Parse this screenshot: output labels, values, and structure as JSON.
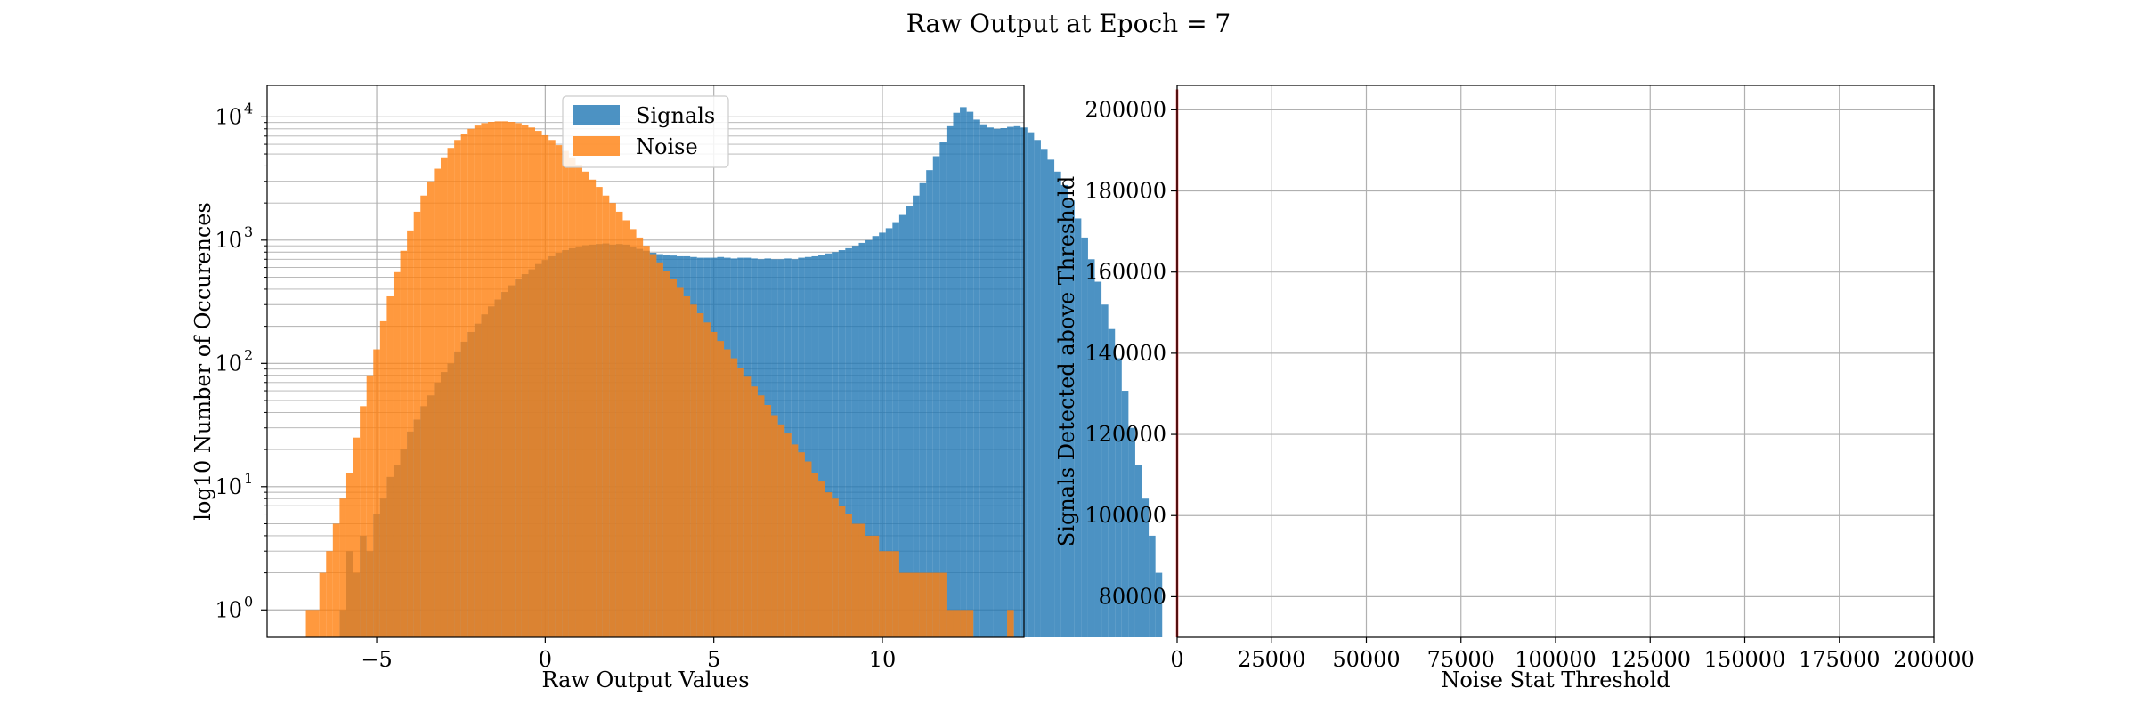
{
  "figure": {
    "suptitle": "Raw Output at Epoch = 7"
  },
  "chart_data": [
    {
      "type": "histogram",
      "title": "",
      "xlabel": "Raw Output Values",
      "ylabel": "log10 Number of Occurences",
      "yscale": "log",
      "xlim": [
        -8.25,
        14.2
      ],
      "ylim": [
        0.6,
        18000
      ],
      "xticks": [
        -5,
        0,
        5,
        10
      ],
      "xtick_labels": [
        "−5",
        "0",
        "5",
        "10"
      ],
      "yticks": [
        1,
        10,
        100,
        1000,
        10000
      ],
      "ytick_labels": [
        "10",
        "10",
        "10",
        "10",
        "10"
      ],
      "ytick_exponents": [
        "0",
        "1",
        "2",
        "3",
        "4"
      ],
      "grid": true,
      "legend_position": "upper center",
      "colors": {
        "signals": "#1f77b4",
        "noise": "#ff7f0e"
      },
      "bin_width": 0.2,
      "series": [
        {
          "name": "Signals",
          "color": "#1f77b4",
          "x_start": -6.1,
          "counts": [
            1,
            3,
            2,
            4,
            3,
            6,
            8,
            12,
            15,
            20,
            28,
            35,
            45,
            55,
            70,
            85,
            100,
            125,
            150,
            180,
            210,
            250,
            290,
            330,
            380,
            430,
            480,
            530,
            580,
            640,
            690,
            740,
            790,
            830,
            860,
            890,
            910,
            920,
            930,
            940,
            920,
            930,
            920,
            880,
            850,
            820,
            790,
            770,
            760,
            750,
            740,
            740,
            730,
            720,
            720,
            720,
            730,
            720,
            710,
            720,
            720,
            710,
            700,
            710,
            700,
            700,
            710,
            700,
            720,
            730,
            740,
            760,
            780,
            800,
            830,
            860,
            900,
            950,
            1000,
            1080,
            1150,
            1250,
            1400,
            1600,
            1900,
            2300,
            2900,
            3700,
            4800,
            6300,
            8400,
            10800,
            12000,
            11000,
            9500,
            8700,
            8200,
            8000,
            8100,
            8300,
            8400,
            8200,
            7500,
            6500,
            5500,
            4500,
            3600,
            2800,
            2100,
            1500,
            1050,
            700,
            460,
            300,
            190,
            110,
            60,
            30,
            15,
            8,
            4,
            2
          ]
        },
        {
          "name": "Noise",
          "color": "#ff7f0e",
          "x_start": -7.1,
          "counts": [
            1,
            1,
            2,
            3,
            5,
            8,
            13,
            25,
            45,
            80,
            130,
            220,
            350,
            550,
            820,
            1200,
            1700,
            2300,
            3000,
            3800,
            4700,
            5600,
            6500,
            7300,
            8000,
            8500,
            8900,
            9100,
            9200,
            9200,
            9100,
            8900,
            8600,
            8200,
            7700,
            7100,
            6500,
            5900,
            5300,
            4700,
            4100,
            3600,
            3100,
            2700,
            2300,
            2000,
            1700,
            1450,
            1230,
            1050,
            900,
            770,
            660,
            560,
            480,
            410,
            350,
            300,
            255,
            215,
            180,
            152,
            130,
            110,
            92,
            78,
            65,
            55,
            46,
            38,
            32,
            27,
            22,
            19,
            16,
            13,
            11,
            9,
            8,
            7,
            6,
            5,
            5,
            4,
            4,
            3,
            3,
            3,
            2,
            2,
            2,
            2,
            2,
            2,
            2,
            1,
            1,
            1,
            1,
            0,
            0,
            0,
            0,
            0,
            1
          ]
        }
      ]
    },
    {
      "type": "line",
      "title": "",
      "xlabel": "Noise Stat Threshold",
      "ylabel": "Signals Detected above Threshold",
      "xlim": [
        0,
        200000
      ],
      "ylim": [
        70000,
        206000
      ],
      "xticks": [
        0,
        25000,
        50000,
        75000,
        100000,
        125000,
        150000,
        175000,
        200000
      ],
      "xtick_labels": [
        "0",
        "25000",
        "50000",
        "75000",
        "100000",
        "125000",
        "150000",
        "175000",
        "200000"
      ],
      "yticks": [
        80000,
        100000,
        120000,
        140000,
        160000,
        180000,
        200000
      ],
      "ytick_labels": [
        "80000",
        "100000",
        "120000",
        "140000",
        "160000",
        "180000",
        "200000"
      ],
      "grid": true,
      "line_color": "#d62728",
      "series": [
        {
          "x": [
            0,
            0
          ],
          "y": [
            70000,
            205000
          ]
        }
      ]
    }
  ]
}
